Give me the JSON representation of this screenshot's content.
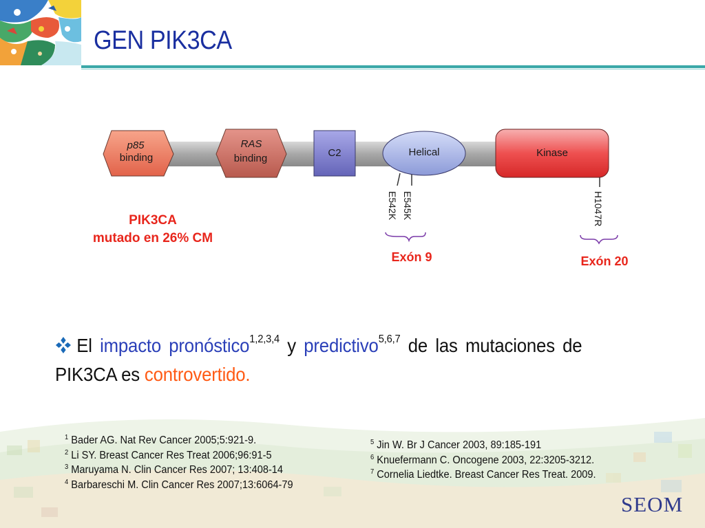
{
  "header": {
    "title": "GEN PIK3CA"
  },
  "diagram": {
    "domains": [
      {
        "label": "p85",
        "label2": "binding",
        "color": "#f0806a"
      },
      {
        "label": "RAS",
        "label2": "binding",
        "color": "#d4766a"
      },
      {
        "label": "C2",
        "color": "#7c7cc8"
      },
      {
        "label": "Helical",
        "color": "#a8b4e8"
      },
      {
        "label": "Kinase",
        "color": "#e84040"
      }
    ],
    "mutations": [
      "E542K",
      "E545K",
      "H1047R"
    ],
    "pik3ca_label_line1": "PIK3CA",
    "pik3ca_label_line2": "mutado en 26% CM",
    "exon9": "Exón 9",
    "exon20": "Exón 20"
  },
  "main": {
    "p1": "El ",
    "p2": "impacto pronóstico",
    "sup1": "1,2,3,4",
    "p3": " y ",
    "p4": "predictivo",
    "sup2": "5,6,7",
    "p5": " de las mutaciones de PIK3CA  es ",
    "p6": "controvertido."
  },
  "references": {
    "left": [
      {
        "n": "1",
        "text": " Bader AG. Nat Rev Cancer 2005;5:921-9."
      },
      {
        "n": "2",
        "text": " Li SY. Breast Cancer Res Treat 2006;96:91-5"
      },
      {
        "n": "3",
        "text": " Maruyama N. Clin Cancer Res 2007; 13:408-14"
      },
      {
        "n": "4",
        "text": " Barbareschi M. Clin Cancer Res 2007;13:6064-79"
      }
    ],
    "right": [
      {
        "n": "5",
        "text": " Jin W. Br J Cancer 2003, 89:185-191"
      },
      {
        "n": "6",
        "text": " Knuefermann C. Oncogene 2003, 22:3205-3212."
      },
      {
        "n": "7",
        "text": " Cornelia Liedtke. Breast Cancer Res Treat. 2009."
      }
    ]
  },
  "footer": {
    "logo_text": "SEOM"
  },
  "colors": {
    "title_blue": "#1a2fa0",
    "accent_red": "#e8261c",
    "accent_orange": "#ff5a14",
    "text_blue": "#2a3fb8"
  }
}
